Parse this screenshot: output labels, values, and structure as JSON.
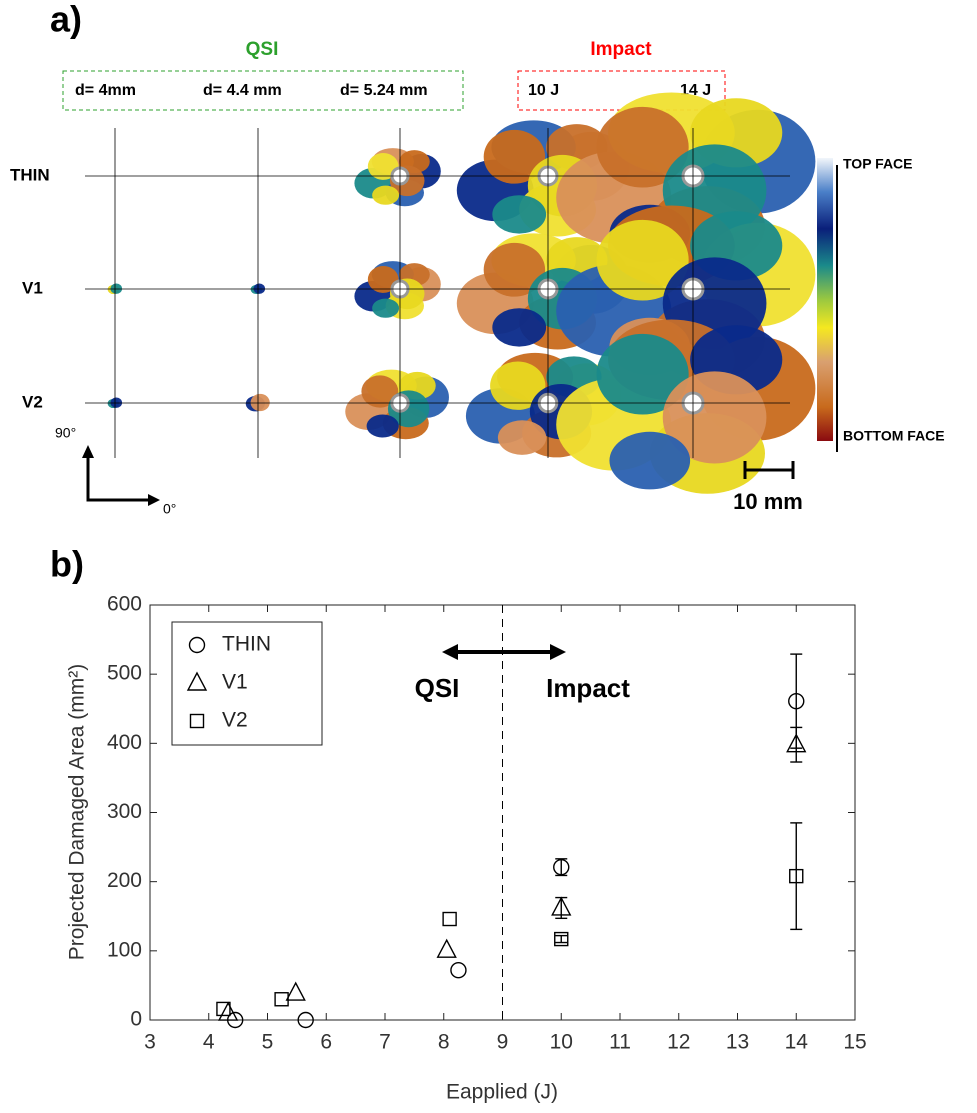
{
  "panel_a": {
    "label": "a)",
    "groups": [
      {
        "title": "QSI",
        "color": "#2ca02c",
        "labels": [
          "d= 4mm",
          "d= 4.4 mm",
          "d= 5.24 mm"
        ]
      },
      {
        "title": "Impact",
        "color": "#ff0000",
        "labels": [
          "10 J",
          "14 J"
        ]
      }
    ],
    "rows": [
      "THIN",
      "V1",
      "V2"
    ],
    "colorbar": {
      "top": "TOP FACE",
      "bottom": "BOTTOM FACE"
    },
    "axes": {
      "y": "90°",
      "x": "0°"
    },
    "scale_bar": "10 mm"
  },
  "panel_b": {
    "label": "b)"
  },
  "chart_data": {
    "type": "scatter",
    "x_label": "Eapplied (J)",
    "y_label": "Projected Damaged Area (mm²)",
    "xlim": [
      3,
      15
    ],
    "xticks": [
      3,
      4,
      5,
      6,
      7,
      8,
      9,
      10,
      11,
      12,
      13,
      14,
      15
    ],
    "ylim": [
      0,
      600
    ],
    "yticks": [
      0,
      100,
      200,
      300,
      400,
      500,
      600
    ],
    "vline": 9,
    "annotations": [
      "QSI",
      "Impact"
    ],
    "legend": "top-left",
    "series": [
      {
        "name": "THIN",
        "marker": "circle",
        "color": "#000000",
        "x": [
          4.45,
          5.65,
          8.25,
          10,
          14
        ],
        "values": [
          0,
          0,
          72,
          221,
          461
        ],
        "errors": [
          null,
          null,
          null,
          12,
          68
        ]
      },
      {
        "name": "V1",
        "marker": "triangle",
        "color": "#000000",
        "x": [
          4.33,
          5.48,
          8.05,
          10,
          14
        ],
        "values": [
          10,
          39,
          101,
          162,
          398
        ],
        "errors": [
          null,
          null,
          null,
          15,
          25
        ]
      },
      {
        "name": "V2",
        "marker": "square",
        "color": "#000000",
        "x": [
          4.25,
          5.24,
          8.1,
          10,
          14
        ],
        "values": [
          16,
          30,
          146,
          117,
          208
        ],
        "errors": [
          null,
          null,
          null,
          5,
          77
        ]
      }
    ]
  }
}
